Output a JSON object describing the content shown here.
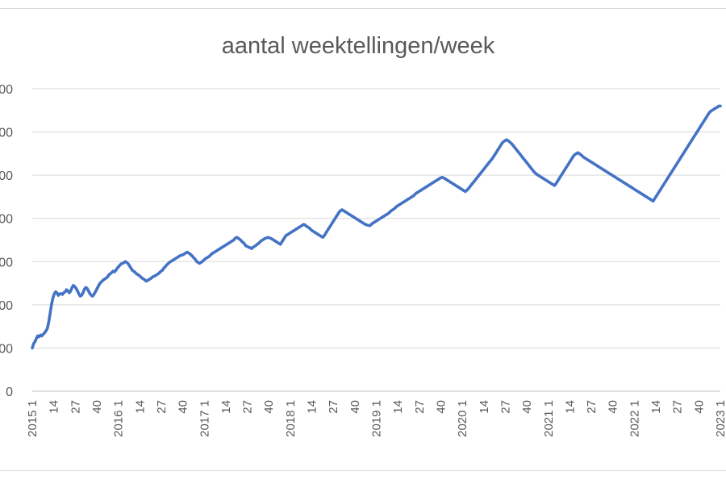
{
  "chart_data": {
    "type": "line",
    "title": "aantal weektellingen/week",
    "xlabel": "",
    "ylabel": "",
    "ylim": [
      0,
      700
    ],
    "y_ticks": [
      "0",
      "00",
      "00",
      "00",
      "00",
      "00",
      "00",
      "00"
    ],
    "x_tick_labels": [
      "2015 1",
      "14",
      "27",
      "40",
      "2016 1",
      "14",
      "27",
      "40",
      "2017 1",
      "14",
      "27",
      "40",
      "2018 1",
      "14",
      "27",
      "40",
      "2019 1",
      "14",
      "27",
      "40",
      "2020 1",
      "14",
      "27",
      "40",
      "2021 1",
      "14",
      "27",
      "40",
      "2022 1",
      "14",
      "27",
      "40",
      "2023 1"
    ],
    "grid": true,
    "legend": "none",
    "color": "#4472c4",
    "series": [
      {
        "values": [
          100,
          110,
          115,
          122,
          128,
          126,
          130,
          128,
          132,
          135,
          140,
          145,
          160,
          180,
          200,
          215,
          225,
          230,
          228,
          222,
          225,
          226,
          224,
          228,
          230,
          235,
          232,
          228,
          232,
          240,
          245,
          242,
          238,
          232,
          225,
          220,
          222,
          228,
          236,
          240,
          238,
          232,
          226,
          222,
          220,
          224,
          230,
          236,
          242,
          248,
          252,
          255,
          258,
          260,
          262,
          265,
          270,
          272,
          275,
          278,
          276,
          280,
          285,
          288,
          292,
          295,
          296,
          298,
          300,
          298,
          295,
          290,
          285,
          280,
          278,
          275,
          272,
          270,
          268,
          265,
          262,
          260,
          258,
          255,
          256,
          258,
          260,
          262,
          265,
          266,
          268,
          270,
          272,
          275,
          278,
          280,
          285,
          288,
          292,
          295,
          298,
          300,
          302,
          304,
          306,
          308,
          310,
          312,
          314,
          315,
          316,
          318,
          320,
          322,
          320,
          318,
          315,
          312,
          308,
          305,
          300,
          298,
          296,
          298,
          300,
          303,
          306,
          308,
          310,
          312,
          315,
          318,
          320,
          322,
          324,
          326,
          328,
          330,
          332,
          334,
          336,
          338,
          340,
          342,
          344,
          346,
          348,
          350,
          354,
          356,
          355,
          352,
          350,
          346,
          344,
          340,
          336,
          335,
          333,
          332,
          330,
          333,
          335,
          337,
          340,
          342,
          345,
          348,
          350,
          352,
          354,
          355,
          356,
          355,
          354,
          352,
          350,
          348,
          346,
          344,
          342,
          340,
          345,
          350,
          355,
          360,
          362,
          364,
          366,
          368,
          370,
          372,
          374,
          376,
          378,
          380,
          382,
          384,
          386,
          385,
          382,
          380,
          378,
          375,
          372,
          370,
          368,
          366,
          364,
          362,
          360,
          358,
          356,
          360,
          365,
          370,
          375,
          380,
          385,
          390,
          395,
          400,
          405,
          410,
          415,
          418,
          420,
          418,
          416,
          414,
          412,
          410,
          408,
          406,
          404,
          402,
          400,
          398,
          396,
          394,
          392,
          390,
          388,
          386,
          385,
          384,
          383,
          385,
          388,
          390,
          392,
          394,
          396,
          398,
          400,
          402,
          404,
          406,
          408,
          410,
          412,
          415,
          418,
          420,
          422,
          425,
          428,
          430,
          432,
          434,
          436,
          438,
          440,
          442,
          444,
          446,
          448,
          450,
          452,
          455,
          458,
          460,
          462,
          464,
          466,
          468,
          470,
          472,
          474,
          476,
          478,
          480,
          482,
          484,
          486,
          488,
          490,
          492,
          494,
          495,
          494,
          492,
          490,
          488,
          486,
          484,
          482,
          480,
          478,
          476,
          474,
          472,
          470,
          468,
          466,
          464,
          462,
          465,
          468,
          472,
          476,
          480,
          484,
          488,
          492,
          496,
          500,
          504,
          508,
          512,
          516,
          520,
          524,
          528,
          532,
          536,
          540,
          545,
          550,
          555,
          560,
          565,
          570,
          575,
          578,
          580,
          582,
          580,
          578,
          575,
          572,
          568,
          564,
          560,
          556,
          552,
          548,
          544,
          540,
          536,
          532,
          528,
          524,
          520,
          516,
          512,
          508,
          505,
          502,
          500,
          498,
          496,
          494,
          492,
          490,
          488,
          486,
          484,
          482,
          480,
          478,
          476,
          480,
          485,
          490,
          495,
          500,
          505,
          510,
          515,
          520,
          525,
          530,
          535,
          540,
          545,
          548,
          550,
          552,
          550,
          548,
          545,
          542,
          540,
          538,
          536,
          534,
          532,
          530,
          528,
          526,
          524,
          522,
          520,
          518,
          516,
          514,
          512,
          510,
          508,
          506,
          504,
          502,
          500,
          498,
          496,
          494,
          492,
          490,
          488,
          486,
          484,
          482,
          480,
          478,
          476,
          474,
          472,
          470,
          468,
          466,
          464,
          462,
          460,
          458,
          456,
          454,
          452,
          450,
          448,
          446,
          444,
          442,
          440,
          445,
          450,
          455,
          460,
          465,
          470,
          475,
          480,
          485,
          490,
          495,
          500,
          505,
          510,
          515,
          520,
          525,
          530,
          535,
          540,
          545,
          550,
          555,
          560,
          565,
          570,
          575,
          580,
          585,
          590,
          595,
          600,
          605,
          610,
          615,
          620,
          625,
          630,
          635,
          640,
          645,
          648,
          650,
          652,
          654,
          656,
          658,
          660,
          660
        ]
      }
    ]
  }
}
